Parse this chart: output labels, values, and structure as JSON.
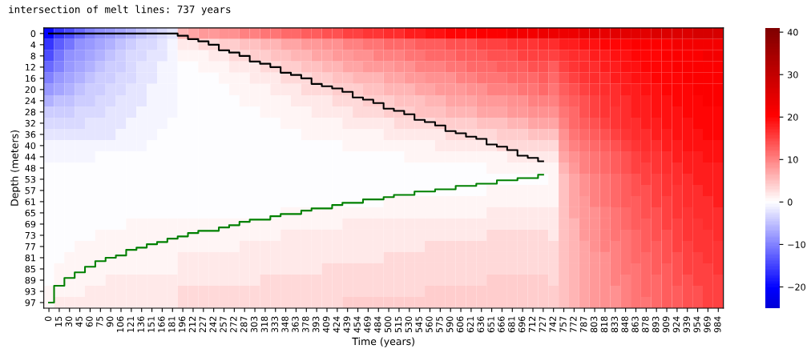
{
  "chart_data": {
    "type": "heatmap",
    "title": "intersection of melt lines: 737 years",
    "xlabel": "Time (years)",
    "ylabel": "Depth (meters)",
    "categories": [
      "0",
      "15",
      "30",
      "45",
      "60",
      "75",
      "90",
      "106",
      "121",
      "136",
      "151",
      "166",
      "181",
      "196",
      "212",
      "227",
      "242",
      "257",
      "272",
      "287",
      "303",
      "318",
      "333",
      "348",
      "363",
      "378",
      "393",
      "409",
      "424",
      "439",
      "454",
      "469",
      "484",
      "500",
      "515",
      "530",
      "545",
      "560",
      "575",
      "590",
      "606",
      "621",
      "636",
      "651",
      "666",
      "681",
      "696",
      "712",
      "727",
      "742",
      "757",
      "772",
      "787",
      "803",
      "818",
      "833",
      "848",
      "863",
      "878",
      "893",
      "909",
      "924",
      "939",
      "954",
      "969",
      "984"
    ],
    "y_categories": [
      "0",
      "4",
      "8",
      "12",
      "16",
      "20",
      "24",
      "28",
      "32",
      "36",
      "40",
      "44",
      "48",
      "53",
      "57",
      "61",
      "65",
      "69",
      "73",
      "77",
      "81",
      "85",
      "89",
      "93",
      "97"
    ],
    "clim": [
      -25,
      41
    ],
    "cticks": [
      {
        "value": -20,
        "label": "−20"
      },
      {
        "value": -10,
        "label": "−10"
      },
      0,
      10,
      20,
      30,
      40
    ],
    "cells": [
      [
        -20,
        -16,
        -14,
        -12,
        -10,
        -9,
        -8,
        -7,
        -6,
        -5,
        -4,
        -3,
        -2,
        6,
        7,
        8,
        8,
        9,
        9,
        10,
        10,
        11,
        11,
        12,
        12,
        13,
        13,
        14,
        14,
        15,
        15,
        16,
        16,
        17,
        17,
        18,
        18,
        19,
        19,
        20,
        20,
        20,
        21,
        21,
        21,
        22,
        22,
        22,
        23,
        23,
        23,
        23,
        24,
        24,
        24,
        25,
        25,
        25,
        25,
        26,
        26,
        26,
        26,
        27,
        27,
        27
      ],
      [
        -16,
        -13,
        -11,
        -9,
        -8,
        -7,
        -6,
        -5,
        -4,
        -3,
        -3,
        -2,
        -1,
        2,
        2,
        3,
        3,
        4,
        4,
        5,
        5,
        6,
        6,
        7,
        7,
        8,
        8,
        9,
        9,
        10,
        10,
        11,
        11,
        12,
        12,
        12,
        13,
        13,
        13,
        14,
        14,
        14,
        15,
        15,
        15,
        16,
        16,
        16,
        17,
        17,
        18,
        18,
        19,
        19,
        20,
        20,
        20,
        21,
        21,
        21,
        21,
        22,
        22,
        22,
        22,
        22
      ],
      [
        -14,
        -11,
        -9,
        -8,
        -7,
        -6,
        -5,
        -4,
        -3,
        -3,
        -2,
        -2,
        -1,
        1,
        1,
        1,
        2,
        2,
        3,
        3,
        4,
        4,
        5,
        5,
        6,
        6,
        7,
        7,
        8,
        8,
        9,
        9,
        10,
        10,
        10,
        11,
        11,
        12,
        12,
        12,
        13,
        13,
        13,
        14,
        14,
        14,
        15,
        15,
        15,
        15,
        16,
        17,
        17,
        18,
        18,
        19,
        19,
        20,
        20,
        20,
        21,
        21,
        21,
        21,
        22,
        22
      ],
      [
        -12,
        -10,
        -8,
        -7,
        -6,
        -5,
        -4,
        -4,
        -3,
        -2,
        -2,
        -1,
        -1,
        0,
        0,
        1,
        1,
        1,
        2,
        2,
        2,
        3,
        3,
        4,
        4,
        5,
        5,
        6,
        6,
        7,
        7,
        8,
        8,
        8,
        9,
        9,
        10,
        10,
        10,
        11,
        11,
        12,
        12,
        12,
        13,
        13,
        13,
        14,
        14,
        13,
        15,
        16,
        17,
        17,
        18,
        18,
        19,
        19,
        20,
        20,
        20,
        21,
        21,
        21,
        21,
        21
      ],
      [
        -10,
        -8,
        -7,
        -6,
        -5,
        -4,
        -4,
        -3,
        -3,
        -2,
        -2,
        -1,
        -1,
        0,
        0,
        0,
        0,
        1,
        1,
        1,
        2,
        2,
        2,
        3,
        3,
        3,
        4,
        4,
        5,
        5,
        6,
        6,
        6,
        7,
        7,
        8,
        8,
        9,
        9,
        9,
        10,
        10,
        11,
        11,
        11,
        12,
        12,
        12,
        13,
        12,
        14,
        15,
        16,
        17,
        17,
        18,
        18,
        19,
        19,
        20,
        20,
        20,
        21,
        21,
        21,
        21
      ],
      [
        -8,
        -7,
        -6,
        -5,
        -4,
        -4,
        -3,
        -3,
        -2,
        -2,
        -1,
        -1,
        -1,
        0,
        0,
        0,
        0,
        0,
        1,
        1,
        1,
        1,
        2,
        2,
        2,
        3,
        3,
        3,
        4,
        4,
        4,
        5,
        5,
        6,
        6,
        6,
        7,
        7,
        8,
        8,
        8,
        9,
        9,
        10,
        10,
        10,
        11,
        11,
        12,
        11,
        13,
        14,
        15,
        16,
        17,
        17,
        18,
        18,
        19,
        19,
        20,
        20,
        20,
        21,
        21,
        21
      ],
      [
        -6,
        -5,
        -5,
        -4,
        -4,
        -3,
        -3,
        -2,
        -2,
        -2,
        -1,
        -1,
        -1,
        0,
        0,
        0,
        0,
        0,
        0,
        1,
        1,
        1,
        1,
        1,
        2,
        2,
        2,
        2,
        3,
        3,
        3,
        4,
        4,
        4,
        5,
        5,
        5,
        6,
        6,
        7,
        7,
        7,
        8,
        8,
        8,
        9,
        9,
        10,
        10,
        10,
        12,
        13,
        14,
        15,
        16,
        17,
        17,
        18,
        18,
        19,
        19,
        20,
        20,
        20,
        21,
        21
      ],
      [
        -4,
        -4,
        -4,
        -3,
        -3,
        -3,
        -2,
        -2,
        -2,
        -1,
        -1,
        -1,
        -1,
        0,
        0,
        0,
        0,
        0,
        0,
        0,
        0,
        1,
        1,
        1,
        1,
        1,
        2,
        2,
        2,
        2,
        3,
        3,
        3,
        4,
        4,
        4,
        5,
        5,
        5,
        6,
        6,
        6,
        7,
        7,
        7,
        8,
        8,
        9,
        9,
        9,
        11,
        12,
        14,
        15,
        16,
        16,
        17,
        18,
        18,
        19,
        19,
        19,
        20,
        20,
        20,
        20
      ],
      [
        -3,
        -3,
        -3,
        -3,
        -2,
        -2,
        -2,
        -2,
        -1,
        -1,
        -1,
        -1,
        0,
        0,
        0,
        0,
        0,
        0,
        0,
        0,
        0,
        0,
        0,
        1,
        1,
        1,
        1,
        1,
        1,
        2,
        2,
        2,
        2,
        2,
        3,
        3,
        3,
        3,
        4,
        4,
        4,
        4,
        5,
        5,
        5,
        6,
        6,
        7,
        7,
        7,
        10,
        12,
        13,
        14,
        15,
        16,
        17,
        17,
        18,
        18,
        19,
        19,
        19,
        20,
        20,
        20
      ],
      [
        -2,
        -2,
        -2,
        -2,
        -2,
        -2,
        -2,
        -1,
        -1,
        -1,
        -1,
        0,
        0,
        0,
        0,
        0,
        0,
        0,
        0,
        0,
        0,
        0,
        0,
        0,
        0,
        1,
        1,
        1,
        1,
        1,
        1,
        1,
        1,
        2,
        2,
        2,
        2,
        2,
        2,
        3,
        3,
        3,
        3,
        3,
        4,
        4,
        4,
        5,
        5,
        5,
        9,
        11,
        12,
        13,
        14,
        15,
        16,
        17,
        17,
        18,
        18,
        19,
        19,
        19,
        20,
        20
      ],
      [
        -1,
        -1,
        -1,
        -1,
        -1,
        -1,
        -1,
        -1,
        -1,
        -1,
        0,
        0,
        0,
        0,
        0,
        0,
        0,
        0,
        0,
        0,
        0,
        0,
        0,
        0,
        0,
        0,
        0,
        0,
        0,
        1,
        1,
        1,
        1,
        1,
        1,
        1,
        1,
        1,
        2,
        2,
        2,
        2,
        2,
        2,
        3,
        3,
        3,
        3,
        3,
        3,
        8,
        10,
        11,
        12,
        13,
        14,
        15,
        16,
        17,
        17,
        18,
        18,
        19,
        19,
        19,
        19
      ],
      [
        -1,
        -1,
        -1,
        -1,
        -1,
        0,
        0,
        0,
        0,
        0,
        0,
        0,
        0,
        0,
        0,
        0,
        0,
        0,
        0,
        0,
        0,
        0,
        0,
        0,
        0,
        0,
        0,
        0,
        0,
        0,
        0,
        0,
        0,
        0,
        0,
        1,
        1,
        1,
        1,
        1,
        1,
        1,
        1,
        1,
        1,
        2,
        2,
        2,
        2,
        2,
        7,
        9,
        10,
        11,
        12,
        13,
        14,
        15,
        16,
        16,
        17,
        18,
        18,
        18,
        19,
        19
      ],
      [
        0,
        0,
        0,
        0,
        0,
        0,
        0,
        0,
        0,
        0,
        0,
        0,
        0,
        0,
        0,
        0,
        0,
        0,
        0,
        0,
        0,
        0,
        0,
        0,
        0,
        0,
        0,
        0,
        0,
        0,
        0,
        0,
        0,
        0,
        0,
        0,
        0,
        0,
        0,
        0,
        0,
        0,
        0,
        1,
        1,
        1,
        1,
        1,
        1,
        1,
        6,
        8,
        10,
        11,
        12,
        13,
        14,
        15,
        15,
        16,
        17,
        17,
        18,
        18,
        18,
        18
      ],
      [
        0,
        0,
        0,
        0,
        0,
        0,
        0,
        0,
        0,
        0,
        0,
        0,
        0,
        0,
        0,
        0,
        0,
        0,
        0,
        0,
        0,
        0,
        0,
        0,
        0,
        0,
        0,
        0,
        0,
        0,
        0,
        0,
        0,
        0,
        0,
        0,
        0,
        0,
        0,
        0,
        0,
        0,
        0,
        0,
        0,
        0,
        0,
        0,
        0,
        1,
        5,
        7,
        9,
        10,
        11,
        12,
        13,
        14,
        15,
        15,
        16,
        17,
        17,
        18,
        18,
        18
      ],
      [
        0,
        0,
        0,
        0,
        0,
        0,
        0,
        0,
        0,
        0,
        0,
        0,
        0,
        0,
        0,
        0,
        0,
        0,
        0,
        0,
        0,
        0,
        0,
        0,
        0,
        0,
        0,
        0,
        0,
        0,
        0,
        0,
        0,
        0,
        0,
        0,
        0,
        0,
        0,
        0,
        0,
        0,
        0,
        1,
        1,
        1,
        1,
        1,
        1,
        1,
        5,
        7,
        9,
        10,
        11,
        12,
        13,
        14,
        14,
        15,
        16,
        16,
        17,
        17,
        18,
        18
      ],
      [
        0,
        0,
        0,
        0,
        0,
        0,
        0,
        0,
        0,
        0,
        0,
        0,
        0,
        0,
        0,
        0,
        0,
        0,
        0,
        0,
        0,
        0,
        0,
        0,
        0,
        0,
        0,
        0,
        0,
        0,
        0,
        0,
        0,
        1,
        1,
        1,
        1,
        1,
        1,
        1,
        1,
        1,
        1,
        1,
        1,
        1,
        1,
        1,
        1,
        1,
        5,
        7,
        8,
        10,
        11,
        12,
        13,
        13,
        14,
        15,
        15,
        16,
        17,
        17,
        17,
        18
      ],
      [
        0,
        0,
        0,
        0,
        0,
        0,
        0,
        0,
        0,
        0,
        0,
        0,
        0,
        0,
        0,
        0,
        0,
        0,
        0,
        0,
        0,
        0,
        0,
        1,
        1,
        1,
        1,
        1,
        1,
        1,
        1,
        1,
        1,
        1,
        1,
        1,
        1,
        1,
        1,
        1,
        1,
        1,
        1,
        2,
        2,
        2,
        2,
        2,
        2,
        2,
        5,
        7,
        8,
        9,
        10,
        11,
        12,
        13,
        14,
        14,
        15,
        16,
        16,
        17,
        17,
        17
      ],
      [
        0,
        0,
        0,
        0,
        0,
        0,
        0,
        0,
        1,
        1,
        1,
        1,
        1,
        1,
        1,
        1,
        1,
        1,
        1,
        1,
        1,
        1,
        1,
        1,
        1,
        1,
        1,
        1,
        1,
        2,
        2,
        2,
        2,
        2,
        2,
        2,
        2,
        2,
        2,
        2,
        2,
        2,
        2,
        2,
        2,
        2,
        2,
        2,
        2,
        2,
        5,
        6,
        8,
        9,
        10,
        11,
        12,
        13,
        13,
        14,
        15,
        15,
        16,
        16,
        17,
        17
      ],
      [
        0,
        0,
        0,
        0,
        0,
        1,
        1,
        1,
        1,
        1,
        1,
        1,
        1,
        1,
        1,
        1,
        1,
        1,
        1,
        1,
        1,
        1,
        1,
        2,
        2,
        2,
        2,
        2,
        2,
        2,
        2,
        2,
        2,
        2,
        2,
        2,
        2,
        2,
        2,
        2,
        2,
        2,
        2,
        3,
        3,
        3,
        3,
        3,
        3,
        2,
        5,
        6,
        8,
        9,
        10,
        11,
        11,
        12,
        13,
        14,
        14,
        15,
        16,
        16,
        16,
        17
      ],
      [
        0,
        0,
        0,
        1,
        1,
        1,
        1,
        1,
        1,
        1,
        1,
        1,
        1,
        1,
        1,
        1,
        1,
        1,
        1,
        2,
        2,
        2,
        2,
        2,
        2,
        2,
        2,
        2,
        2,
        2,
        2,
        2,
        2,
        2,
        2,
        2,
        2,
        3,
        3,
        3,
        3,
        3,
        3,
        3,
        3,
        3,
        3,
        3,
        3,
        3,
        5,
        6,
        7,
        9,
        10,
        10,
        11,
        12,
        13,
        13,
        14,
        15,
        15,
        16,
        16,
        16
      ],
      [
        0,
        0,
        1,
        1,
        1,
        1,
        1,
        1,
        1,
        1,
        1,
        1,
        1,
        2,
        2,
        2,
        2,
        2,
        2,
        2,
        2,
        2,
        2,
        2,
        2,
        2,
        2,
        2,
        2,
        2,
        2,
        2,
        2,
        3,
        3,
        3,
        3,
        3,
        3,
        3,
        3,
        3,
        3,
        3,
        3,
        3,
        3,
        3,
        3,
        3,
        5,
        6,
        7,
        8,
        9,
        10,
        11,
        12,
        12,
        13,
        14,
        14,
        15,
        15,
        16,
        16
      ],
      [
        0,
        1,
        1,
        1,
        1,
        1,
        1,
        1,
        1,
        1,
        1,
        1,
        1,
        2,
        2,
        2,
        2,
        2,
        2,
        2,
        2,
        2,
        2,
        2,
        2,
        2,
        2,
        3,
        3,
        3,
        3,
        3,
        3,
        3,
        3,
        3,
        3,
        3,
        3,
        3,
        3,
        3,
        3,
        3,
        3,
        3,
        3,
        3,
        3,
        3,
        5,
        6,
        7,
        8,
        9,
        10,
        11,
        11,
        12,
        13,
        13,
        14,
        15,
        15,
        15,
        16
      ],
      [
        0,
        1,
        1,
        1,
        1,
        1,
        2,
        2,
        2,
        2,
        2,
        2,
        2,
        2,
        2,
        2,
        2,
        2,
        2,
        2,
        2,
        3,
        3,
        3,
        3,
        3,
        3,
        3,
        3,
        3,
        3,
        3,
        3,
        3,
        3,
        3,
        3,
        3,
        3,
        3,
        3,
        3,
        3,
        4,
        4,
        4,
        4,
        4,
        4,
        3,
        5,
        6,
        7,
        8,
        9,
        10,
        10,
        11,
        12,
        12,
        13,
        14,
        14,
        15,
        15,
        15
      ],
      [
        1,
        1,
        1,
        1,
        2,
        2,
        2,
        2,
        2,
        2,
        2,
        2,
        2,
        3,
        3,
        3,
        3,
        3,
        3,
        3,
        3,
        3,
        3,
        3,
        3,
        3,
        3,
        3,
        3,
        3,
        3,
        3,
        3,
        3,
        3,
        3,
        3,
        4,
        4,
        4,
        4,
        4,
        4,
        4,
        4,
        4,
        4,
        4,
        4,
        4,
        5,
        6,
        7,
        8,
        9,
        9,
        10,
        11,
        12,
        12,
        13,
        13,
        14,
        14,
        15,
        15
      ],
      [
        1,
        2,
        2,
        2,
        2,
        2,
        2,
        2,
        2,
        2,
        2,
        2,
        2,
        3,
        3,
        3,
        3,
        3,
        3,
        3,
        3,
        3,
        3,
        3,
        3,
        3,
        3,
        3,
        3,
        4,
        4,
        4,
        4,
        4,
        4,
        4,
        4,
        4,
        4,
        4,
        4,
        4,
        4,
        4,
        4,
        4,
        4,
        4,
        4,
        4,
        5,
        6,
        7,
        8,
        9,
        9,
        10,
        11,
        11,
        12,
        13,
        13,
        14,
        14,
        15,
        15
      ]
    ],
    "series": [
      {
        "type": "step",
        "color": "#000000",
        "values": [
          0,
          0,
          0,
          0,
          0,
          0,
          0,
          0,
          0,
          0,
          0,
          0,
          0,
          0.2,
          0.5,
          0.7,
          1.0,
          1.5,
          1.7,
          2.0,
          2.5,
          2.7,
          3.0,
          3.5,
          3.7,
          4.0,
          4.5,
          4.7,
          4.9,
          5.2,
          5.7,
          5.9,
          6.2,
          6.7,
          6.9,
          7.2,
          7.7,
          7.9,
          8.2,
          8.7,
          8.9,
          9.2,
          9.4,
          9.9,
          10.1,
          10.4,
          10.9,
          11.1,
          11.4,
          null,
          null,
          null,
          null,
          null,
          null,
          null,
          null,
          null,
          null,
          null,
          null,
          null,
          null,
          null,
          null,
          null
        ]
      },
      {
        "type": "step",
        "color": "#008000",
        "values": [
          24.0,
          22.5,
          21.8,
          21.3,
          20.8,
          20.3,
          20.0,
          19.8,
          19.3,
          19.1,
          18.8,
          18.6,
          18.3,
          18.1,
          17.8,
          17.6,
          17.6,
          17.3,
          17.1,
          16.8,
          16.6,
          16.6,
          16.3,
          16.1,
          16.1,
          15.8,
          15.6,
          15.6,
          15.3,
          15.1,
          15.1,
          14.8,
          14.8,
          14.6,
          14.4,
          14.4,
          14.1,
          14.1,
          13.9,
          13.9,
          13.6,
          13.6,
          13.4,
          13.4,
          13.1,
          13.1,
          12.9,
          12.9,
          12.6,
          null,
          null,
          null,
          null,
          null,
          null,
          null,
          null,
          null,
          null,
          null,
          null,
          null,
          null,
          null,
          null,
          null
        ]
      }
    ]
  }
}
